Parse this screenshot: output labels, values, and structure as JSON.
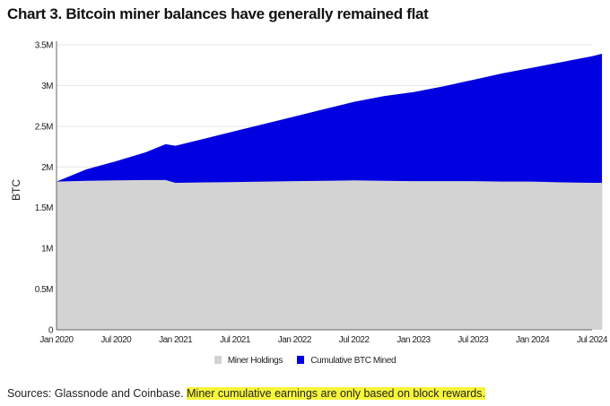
{
  "title": "Chart 3. Bitcoin miner balances have generally remained flat",
  "source_text": "Sources: Glassnode and Coinbase.",
  "source_note": "Miner cumulative earnings are only based on block rewards.",
  "colors": {
    "miner_holdings": "#d3d3d3",
    "cumulative_btc_mined": "#0000e0",
    "highlight": "#f7f53a"
  },
  "chart_data": {
    "type": "area",
    "title": "Chart 3. Bitcoin miner balances have generally remained flat",
    "xlabel": "",
    "ylabel": "BTC",
    "ylim": [
      0,
      3500000
    ],
    "yticks": [
      0,
      500000,
      1000000,
      1500000,
      2000000,
      2500000,
      3000000,
      3500000
    ],
    "ytick_labels": [
      "0",
      "0.5M",
      "1M",
      "1.5M",
      "2M",
      "2.5M",
      "3M",
      "3.5M"
    ],
    "xtick_labels": [
      "Jan 2020",
      "Jul 2020",
      "Jan 2021",
      "Jul 2021",
      "Jan 2022",
      "Jul 2022",
      "Jan 2023",
      "Jul 2023",
      "Jan 2024",
      "Jul 2024"
    ],
    "grid": "horizontal",
    "legend": "bottom",
    "x": [
      "2020-01",
      "2020-04",
      "2020-07",
      "2020-10",
      "2020-12",
      "2021-01",
      "2021-04",
      "2021-07",
      "2021-10",
      "2022-01",
      "2022-04",
      "2022-07",
      "2022-10",
      "2023-01",
      "2023-04",
      "2023-07",
      "2023-10",
      "2024-01",
      "2024-04",
      "2024-07",
      "2024-08"
    ],
    "series": [
      {
        "name": "Miner Holdings",
        "values": [
          1820000,
          1830000,
          1835000,
          1840000,
          1840000,
          1805000,
          1810000,
          1815000,
          1820000,
          1825000,
          1830000,
          1835000,
          1830000,
          1825000,
          1825000,
          1825000,
          1820000,
          1820000,
          1810000,
          1805000,
          1805000
        ]
      },
      {
        "name": "Cumulative BTC Mined",
        "values": [
          1820000,
          1970000,
          2070000,
          2180000,
          2280000,
          2260000,
          2350000,
          2440000,
          2530000,
          2620000,
          2710000,
          2800000,
          2870000,
          2920000,
          2990000,
          3070000,
          3150000,
          3220000,
          3290000,
          3360000,
          3390000
        ]
      }
    ]
  }
}
